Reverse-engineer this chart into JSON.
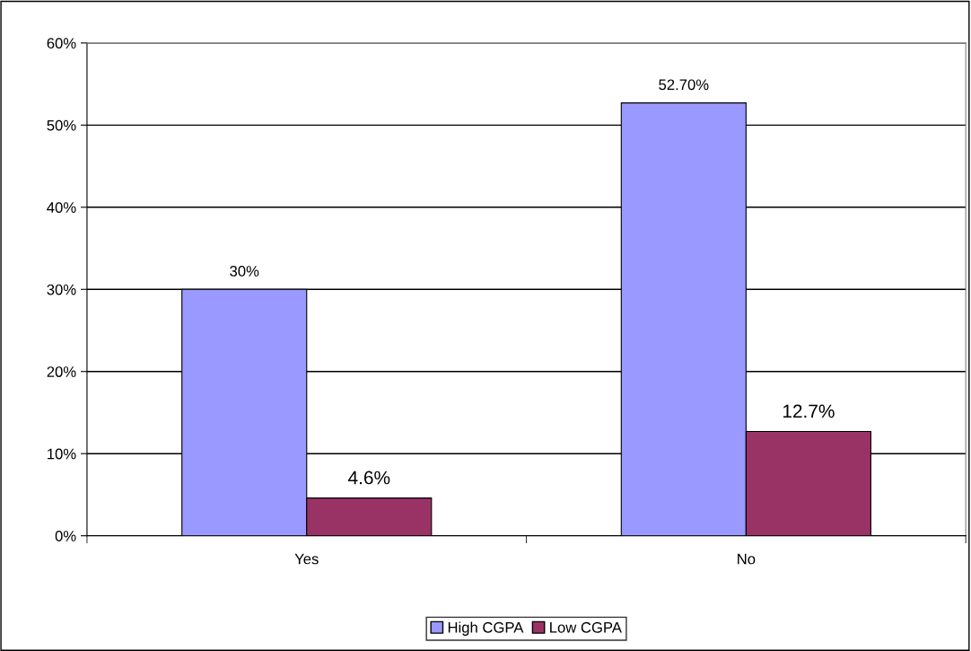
{
  "chart_data": {
    "type": "bar",
    "categories": [
      "Yes",
      "No"
    ],
    "series": [
      {
        "name": "High CGPA",
        "color": "#9999ff",
        "values": [
          30,
          52.7
        ],
        "value_labels": [
          "30%",
          "52.70%"
        ]
      },
      {
        "name": "Low CGPA",
        "color": "#993366",
        "values": [
          4.6,
          12.7
        ],
        "value_labels": [
          "4.6%",
          "12.7%"
        ]
      }
    ],
    "ylim": [
      0,
      60
    ],
    "yticks": [
      {
        "value": 0,
        "label": "0%"
      },
      {
        "value": 10,
        "label": "10%"
      },
      {
        "value": 20,
        "label": "20%"
      },
      {
        "value": 30,
        "label": "30%"
      },
      {
        "value": 40,
        "label": "40%"
      },
      {
        "value": 50,
        "label": "50%"
      },
      {
        "value": 60,
        "label": "60%"
      }
    ],
    "grid": "y",
    "legend": "bottom"
  }
}
